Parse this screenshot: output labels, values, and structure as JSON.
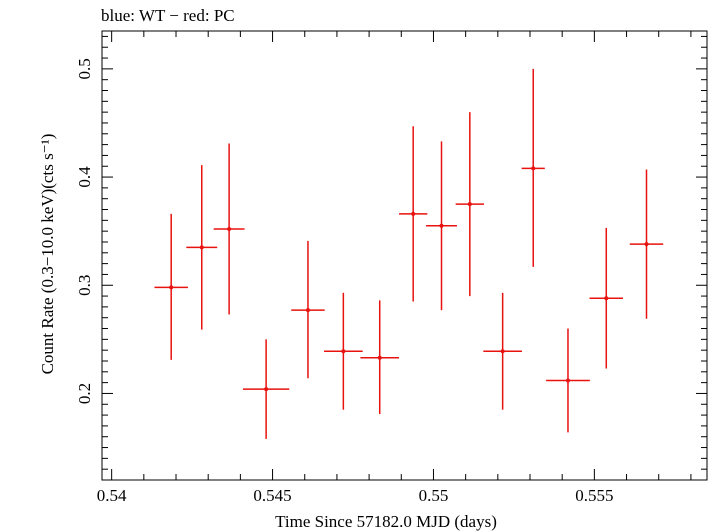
{
  "header": {
    "title": "blue: WT − red: PC"
  },
  "colors": {
    "series_pc": "#e8120e",
    "axis": "#000000",
    "background": "#ffffff"
  },
  "chart_data": {
    "type": "scatter",
    "title": "blue: WT − red: PC",
    "xlabel": "Time Since 57182.0 MJD (days)",
    "ylabel": "Count Rate (0.3−10.0 keV)(cts s⁻¹)",
    "xlim": [
      0.5397,
      0.5585
    ],
    "ylim": [
      0.12,
      0.535
    ],
    "xticks": [
      0.54,
      0.545,
      0.55,
      0.555
    ],
    "xtick_labels": [
      "0.54",
      "0.545",
      "0.55",
      "0.555"
    ],
    "yticks": [
      0.2,
      0.3,
      0.4,
      0.5
    ],
    "ytick_labels": [
      "0.2",
      "0.3",
      "0.4",
      "0.5"
    ],
    "grid": false,
    "series": [
      {
        "color": "#e8120e",
        "points": [
          {
            "x": 0.54185,
            "xerr": 0.00052,
            "y": 0.298,
            "ylo": 0.231,
            "yhi": 0.366
          },
          {
            "x": 0.5428,
            "xerr": 0.00048,
            "y": 0.335,
            "ylo": 0.259,
            "yhi": 0.411
          },
          {
            "x": 0.54365,
            "xerr": 0.00048,
            "y": 0.352,
            "ylo": 0.273,
            "yhi": 0.431
          },
          {
            "x": 0.5448,
            "xerr": 0.00072,
            "y": 0.204,
            "ylo": 0.158,
            "yhi": 0.25
          },
          {
            "x": 0.5461,
            "xerr": 0.00052,
            "y": 0.277,
            "ylo": 0.214,
            "yhi": 0.341
          },
          {
            "x": 0.5472,
            "xerr": 0.0006,
            "y": 0.239,
            "ylo": 0.185,
            "yhi": 0.293
          },
          {
            "x": 0.54833,
            "xerr": 0.0006,
            "y": 0.233,
            "ylo": 0.181,
            "yhi": 0.286
          },
          {
            "x": 0.54937,
            "xerr": 0.00044,
            "y": 0.366,
            "ylo": 0.285,
            "yhi": 0.447
          },
          {
            "x": 0.55025,
            "xerr": 0.00048,
            "y": 0.355,
            "ylo": 0.277,
            "yhi": 0.433
          },
          {
            "x": 0.55113,
            "xerr": 0.00044,
            "y": 0.375,
            "ylo": 0.29,
            "yhi": 0.46
          },
          {
            "x": 0.55215,
            "xerr": 0.0006,
            "y": 0.239,
            "ylo": 0.185,
            "yhi": 0.293
          },
          {
            "x": 0.5531,
            "xerr": 0.00036,
            "y": 0.408,
            "ylo": 0.317,
            "yhi": 0.5
          },
          {
            "x": 0.55418,
            "xerr": 0.00068,
            "y": 0.212,
            "ylo": 0.164,
            "yhi": 0.26
          },
          {
            "x": 0.55537,
            "xerr": 0.00052,
            "y": 0.288,
            "ylo": 0.223,
            "yhi": 0.353
          },
          {
            "x": 0.55662,
            "xerr": 0.00052,
            "y": 0.338,
            "ylo": 0.269,
            "yhi": 0.407
          }
        ]
      }
    ]
  }
}
